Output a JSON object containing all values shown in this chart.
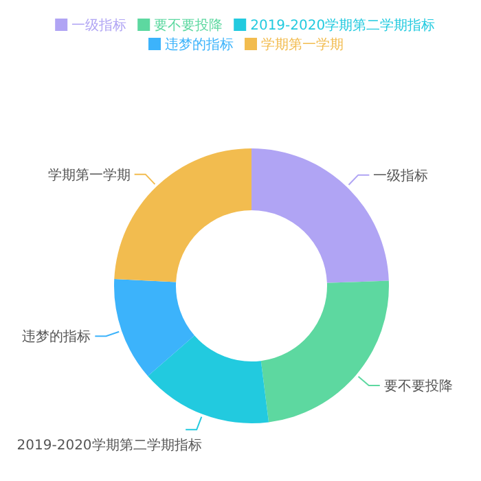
{
  "chart_data": {
    "type": "donut",
    "categories": [
      "一级指标",
      "要不要投降",
      "2019-2020学期第二学期指标",
      "违梦的指标",
      "学期第一学期"
    ],
    "values": [
      24.4,
      23.6,
      15.6,
      12.2,
      24.2
    ],
    "colors": [
      "#b0a4f4",
      "#5dd8a0",
      "#22cadf",
      "#3cb3fb",
      "#f2bc4f"
    ],
    "legend": "top"
  }
}
